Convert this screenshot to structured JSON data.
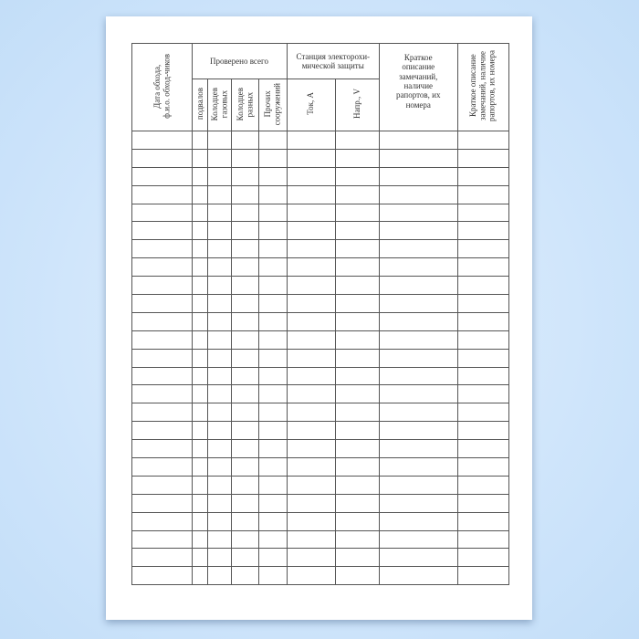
{
  "form": {
    "headers": {
      "date_name": "Дата обхода,\nф.и.о. обход-чиков",
      "checked_total": "Проверено всего",
      "basements": "подвалов",
      "gas_wells": "Колодцев\nгазовых",
      "other_wells": "Колодцев\nразных",
      "other_structures": "Прочих\nсооружений",
      "ecp_station": "Станция электорохи-мической защиты",
      "current": "Ток, А",
      "voltage": "Напр., V",
      "remarks": "Краткое описание замечаний, наличие рапортов, их номера",
      "remarks_vertical": "Краткое описание\nзамечаний, наличие\nрапортов, их номера"
    },
    "empty_rows": 25
  }
}
